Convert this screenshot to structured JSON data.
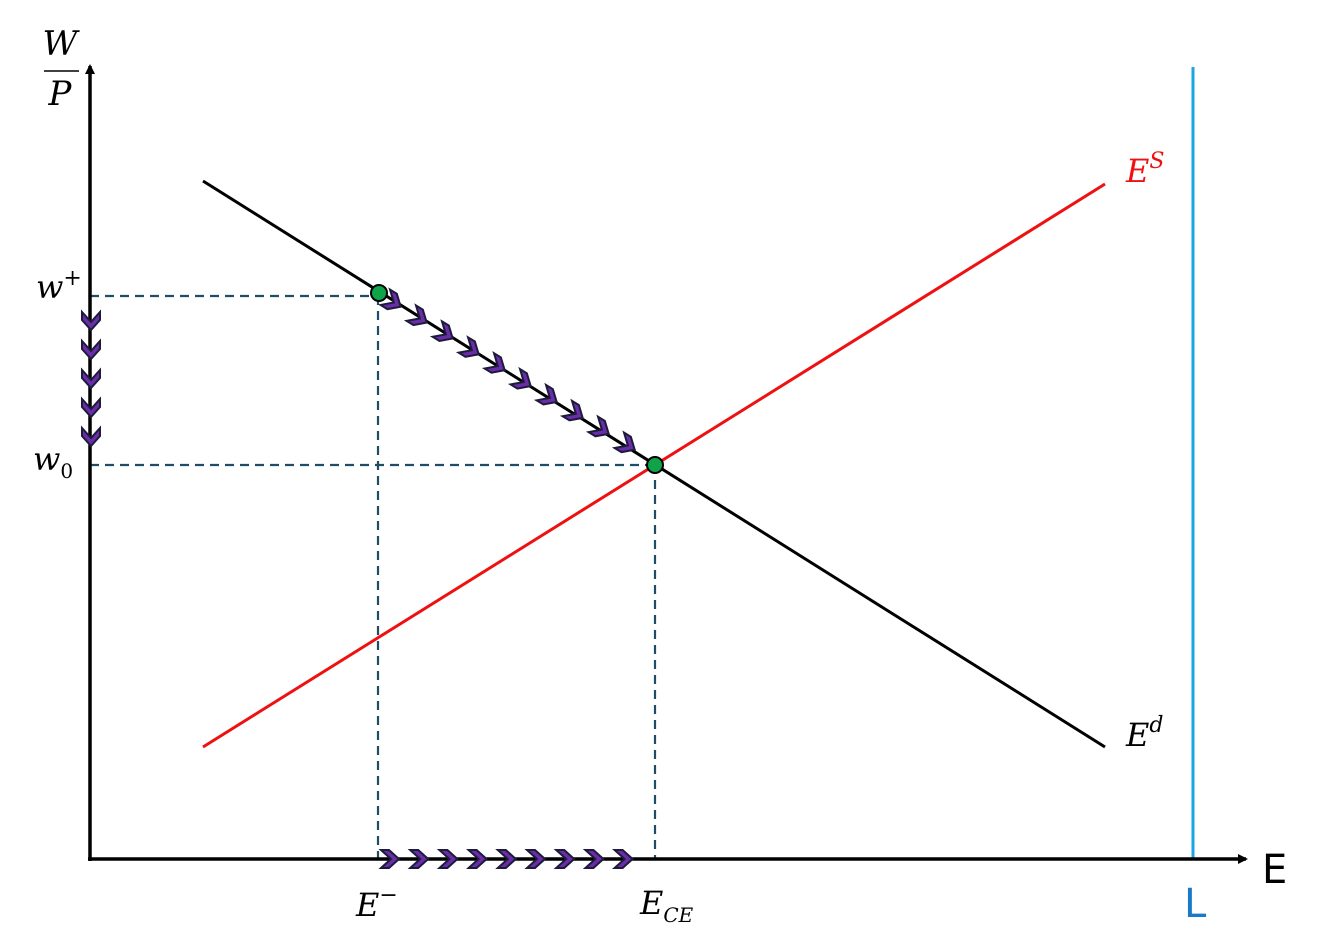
{
  "labels": {
    "y_axis_numerator": "W",
    "y_axis_denominator": "P",
    "x_axis": "E",
    "labor_force": "L",
    "supply_curve": "E",
    "supply_curve_sup": "S",
    "demand_curve": "E",
    "demand_curve_sup": "d",
    "wage_high": "w",
    "wage_high_sup": "+",
    "wage_eq": "w",
    "wage_eq_sub": "0",
    "emp_low": "E",
    "emp_low_sup": "−",
    "emp_eq": "E",
    "emp_eq_sub": "CE"
  },
  "colors": {
    "axis": "#000000",
    "demand": "#000000",
    "supply": "#ee1111",
    "labor_force_line": "#1aa6e0",
    "guide_dashed": "#1f4e64",
    "point_fill": "#10a44a",
    "arrow_fill": "#6a2ca8",
    "arrow_stroke": "#1c1c3a"
  },
  "arrows": {
    "wage_axis_count": 5,
    "demand_path_count": 10,
    "employment_axis_count": 9
  }
}
